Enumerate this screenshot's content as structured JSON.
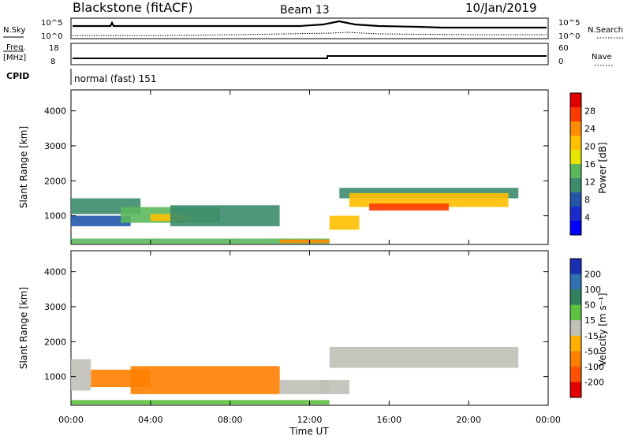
{
  "header": {
    "station": "Blackstone (fitACF)",
    "beam": "Beam 13",
    "date": "10/Jan/2019"
  },
  "noise_panel": {
    "left_label": "N.Sky",
    "right_label": "N.Search",
    "left_ticks": [
      "10^5",
      "10^0"
    ],
    "right_ticks": [
      "10^5",
      "10^0"
    ]
  },
  "freq_panel": {
    "left_label_1": "Freq.",
    "left_label_2": "[MHz]",
    "right_label": "Nave",
    "left_ticks": [
      "18",
      "8"
    ],
    "right_ticks": [
      "60",
      "0"
    ]
  },
  "cpid": {
    "label": "CPID",
    "value": "normal (fast) 151"
  },
  "axes": {
    "ylabel": "Slant Range [km]",
    "yticks": [
      "4000",
      "3000",
      "2000",
      "1000"
    ],
    "xticks": [
      "00:00",
      "04:00",
      "08:00",
      "12:00",
      "16:00",
      "20:00",
      "00:00"
    ],
    "xlabel": "Time UT"
  },
  "power_colorbar": {
    "label": "Power [dB]",
    "ticks": [
      "28",
      "24",
      "20",
      "16",
      "12",
      "8",
      "4"
    ],
    "colors": [
      "#e00000",
      "#ff3a00",
      "#ff8c00",
      "#ffc000",
      "#e6e600",
      "#5cb85c",
      "#3c8c6c",
      "#2255aa",
      "#1a2acc",
      "#0000ff"
    ]
  },
  "velocity_colorbar": {
    "label": "Velocity [m s⁻¹]",
    "ticks": [
      "200",
      "100",
      "50",
      "15",
      "-15",
      "-50",
      "-100",
      "-200"
    ],
    "colors": [
      "#1a30b0",
      "#3070b0",
      "#308060",
      "#60c040",
      "#c0c0b8",
      "#ffb000",
      "#ff8000",
      "#ff5000",
      "#e00000"
    ]
  },
  "chart_data": [
    {
      "type": "heatmap",
      "title": "Power",
      "xlabel": "Time UT",
      "ylabel": "Slant Range [km]",
      "xlim": [
        0,
        24
      ],
      "ylim": [
        180,
        4600
      ],
      "colorbar": "Power [dB]",
      "bands": [
        {
          "t": [
            0.0,
            3.5
          ],
          "r": [
            1050,
            1500
          ],
          "level": 10
        },
        {
          "t": [
            0.0,
            3.0
          ],
          "r": [
            700,
            1000
          ],
          "level": 8
        },
        {
          "t": [
            2.5,
            7.5
          ],
          "r": [
            800,
            1250
          ],
          "level": 14
        },
        {
          "t": [
            4.0,
            6.0
          ],
          "r": [
            850,
            1050
          ],
          "level": 20
        },
        {
          "t": [
            5.0,
            10.5
          ],
          "r": [
            700,
            1300
          ],
          "level": 10
        },
        {
          "t": [
            0.0,
            13.0
          ],
          "r": [
            200,
            350
          ],
          "level": 14
        },
        {
          "t": [
            10.5,
            13.0
          ],
          "r": [
            220,
            320
          ],
          "level": 24
        },
        {
          "t": [
            13.0,
            14.5
          ],
          "r": [
            600,
            1000
          ],
          "level": 20
        },
        {
          "t": [
            13.5,
            22.5
          ],
          "r": [
            1500,
            1800
          ],
          "level": 12
        },
        {
          "t": [
            14.0,
            22.0
          ],
          "r": [
            1250,
            1650
          ],
          "level": 22
        },
        {
          "t": [
            15.0,
            19.0
          ],
          "r": [
            1150,
            1350
          ],
          "level": 26
        }
      ]
    },
    {
      "type": "heatmap",
      "title": "Velocity",
      "xlabel": "Time UT",
      "ylabel": "Slant Range [km]",
      "xlim": [
        0,
        24
      ],
      "ylim": [
        180,
        4600
      ],
      "colorbar": "Velocity [m s⁻¹]",
      "bands": [
        {
          "t": [
            0.0,
            1.0
          ],
          "r": [
            600,
            1500
          ],
          "level": 0
        },
        {
          "t": [
            1.0,
            4.0
          ],
          "r": [
            700,
            1200
          ],
          "level": -40
        },
        {
          "t": [
            3.0,
            10.5
          ],
          "r": [
            500,
            1300
          ],
          "level": -40
        },
        {
          "t": [
            10.5,
            13.0
          ],
          "r": [
            500,
            900
          ],
          "level": 0
        },
        {
          "t": [
            0.0,
            13.0
          ],
          "r": [
            200,
            330
          ],
          "level": 20
        },
        {
          "t": [
            12.5,
            14.0
          ],
          "r": [
            500,
            900
          ],
          "level": 0
        },
        {
          "t": [
            13.0,
            22.5
          ],
          "r": [
            1250,
            1850
          ],
          "level": 0
        }
      ]
    }
  ]
}
